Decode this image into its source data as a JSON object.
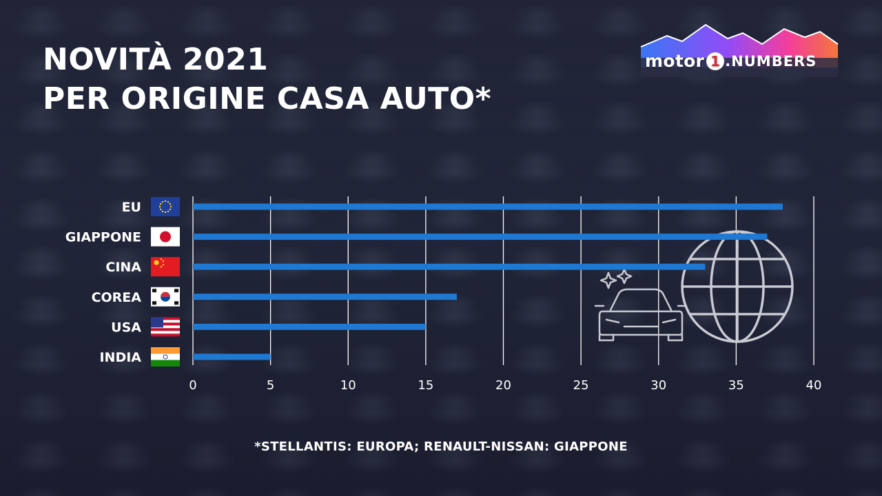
{
  "header": {
    "title_line1": "NOVITÀ 2021",
    "title_line2": "PER ORIGINE CASA AUTO*"
  },
  "logo": {
    "motor": "motor",
    "one": "1",
    "numbers": ".NUMBERS"
  },
  "chart_data": {
    "type": "bar",
    "orientation": "horizontal",
    "title": "NOVITÀ 2021 PER ORIGINE CASA AUTO*",
    "categories": [
      "EU",
      "GIAPPONE",
      "CINA",
      "COREA",
      "USA",
      "INDIA"
    ],
    "values": [
      38,
      37,
      33,
      17,
      15,
      5
    ],
    "xlim": [
      0,
      40
    ],
    "xticks": [
      "0",
      "5",
      "10",
      "15",
      "20",
      "25",
      "30",
      "35",
      "40"
    ],
    "grid": true,
    "bar_color": "#1f78d1",
    "grid_color": "#ffffff"
  },
  "icons": {
    "flags": [
      "eu-flag-icon",
      "japan-flag-icon",
      "china-flag-icon",
      "korea-flag-icon",
      "usa-flag-icon",
      "india-flag-icon"
    ],
    "decor": [
      "car-sparkle-icon",
      "globe-icon"
    ]
  },
  "footnote": "*STELLANTIS: EUROPA; RENAULT-NISSAN: GIAPPONE"
}
